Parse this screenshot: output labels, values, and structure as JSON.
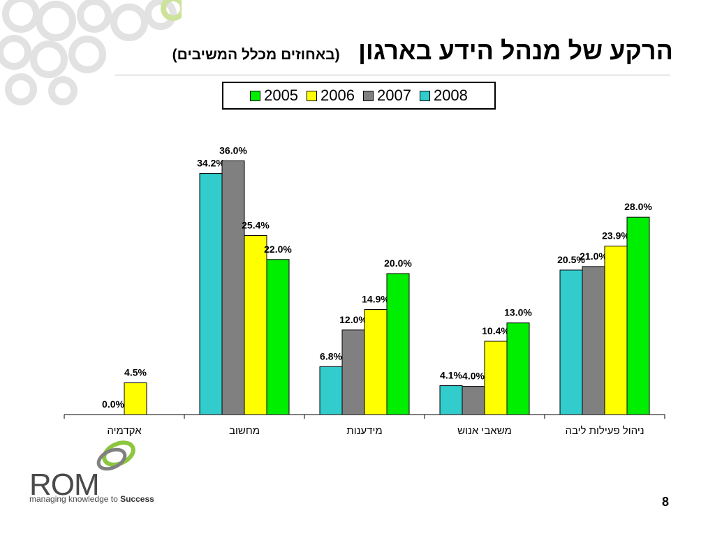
{
  "slide": {
    "title": "הרקע של מנהל הידע בארגון",
    "subtitle": "(באחוזים מכלל המשיבים)",
    "page_number": "8"
  },
  "logo": {
    "name": "ROM",
    "tagline_prefix": "managing knowledge to ",
    "tagline_bold": "Success"
  },
  "legend": [
    {
      "label": "2005",
      "color": "#00ee00"
    },
    {
      "label": "2006",
      "color": "#ffff00"
    },
    {
      "label": "2007",
      "color": "#808080"
    },
    {
      "label": "2008",
      "color": "#33cccc"
    }
  ],
  "chart_data": {
    "type": "bar",
    "categories": [
      "אקדמיה",
      "מחשוב",
      "מידענות",
      "משאבי אנוש",
      "ניהול פעילות ליבה"
    ],
    "series": [
      {
        "name": "2008",
        "color": "#33cccc",
        "values": [
          null,
          34.2,
          6.8,
          4.1,
          20.5
        ],
        "labels": [
          null,
          "34.2%",
          "6.8%",
          "4.1%",
          "20.5%"
        ]
      },
      {
        "name": "2007",
        "color": "#808080",
        "values": [
          0.0,
          36.0,
          12.0,
          4.0,
          21.0
        ],
        "labels": [
          "0.0%",
          "36.0%",
          "12.0%",
          "4.0%",
          "21.0%"
        ]
      },
      {
        "name": "2006",
        "color": "#ffff00",
        "values": [
          4.5,
          25.4,
          14.9,
          10.4,
          23.9
        ],
        "labels": [
          "4.5%",
          "25.4%",
          "14.9%",
          "10.4%",
          "23.9%"
        ]
      },
      {
        "name": "2005",
        "color": "#00ee00",
        "values": [
          null,
          22.0,
          20.0,
          13.0,
          28.0
        ],
        "labels": [
          null,
          "22.0%",
          "20.0%",
          "13.0%",
          "28.0%"
        ]
      }
    ],
    "ylim": [
      0,
      40
    ],
    "grid": false,
    "legend_position": "top"
  }
}
